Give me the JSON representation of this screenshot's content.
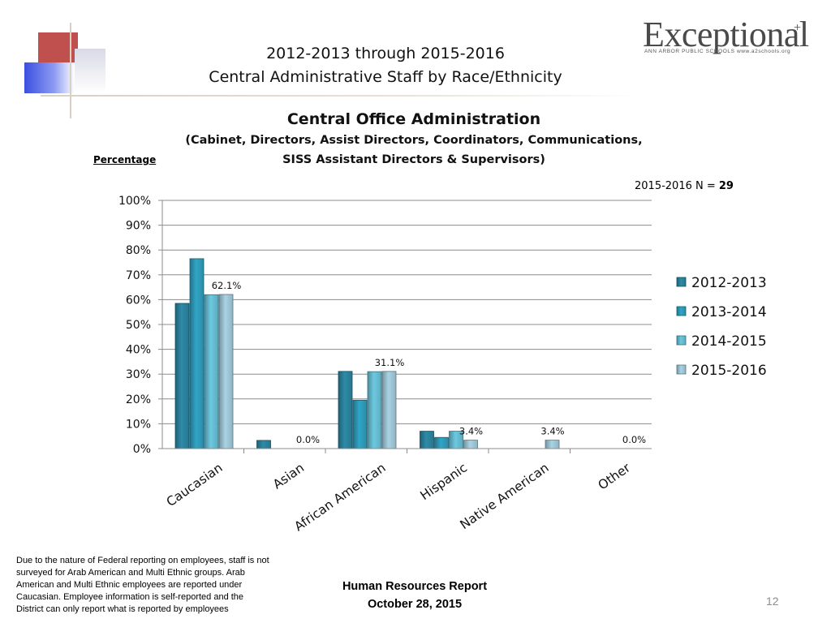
{
  "header": {
    "title_line1": "2012-2013 through 2015-2016",
    "title_line2": "Central Administrative Staff by Race/Ethnicity"
  },
  "logo": {
    "word": "Exceptional",
    "plus": "+",
    "subtitle": "ANN ARBOR PUBLIC SCHOOLS  www.a2schools.org"
  },
  "note": {
    "n_label": "2015-2016 N = ",
    "n_value": "29"
  },
  "chart_data": {
    "type": "bar",
    "title": "Central  Office Administration",
    "subtitle_line1": "(Cabinet, Directors, Assist Directors, Coordinators, Communications,",
    "subtitle_line2": "SISS Assistant Directors & Supervisors)",
    "ylabel": "Percentage",
    "xlabel": "",
    "ylim": [
      0,
      100
    ],
    "yticks": [
      "0%",
      "10%",
      "20%",
      "30%",
      "40%",
      "50%",
      "60%",
      "70%",
      "80%",
      "90%",
      "100%"
    ],
    "grid": true,
    "legend_position": "right",
    "categories": [
      "Caucasian",
      "Asian",
      "African American",
      "Hispanic",
      "Native American",
      "Other"
    ],
    "series": [
      {
        "name": "2012-2013",
        "color": "#2e8ba8",
        "values": [
          58.5,
          3.3,
          31.1,
          7.0,
          0.0,
          0.0
        ]
      },
      {
        "name": "2013-2014",
        "color": "#31a5c6",
        "values": [
          76.5,
          0.0,
          19.5,
          4.5,
          0.0,
          0.0
        ]
      },
      {
        "name": "2014-2015",
        "color": "#6cc9e0",
        "values": [
          62.0,
          0.0,
          31.0,
          7.0,
          0.0,
          0.0
        ]
      },
      {
        "name": "2015-2016",
        "color": "#a9d3e4",
        "values": [
          62.1,
          0.0,
          31.1,
          3.4,
          3.4,
          0.0
        ]
      }
    ],
    "data_labels": [
      {
        "category": "Caucasian",
        "series": "2015-2016",
        "text": "62.1%"
      },
      {
        "category": "Asian",
        "series": "2015-2016",
        "text": "0.0%"
      },
      {
        "category": "African American",
        "series": "2015-2016",
        "text": "31.1%"
      },
      {
        "category": "Hispanic",
        "series": "2015-2016",
        "text": "3.4%"
      },
      {
        "category": "Native American",
        "series": "2015-2016",
        "text": "3.4%"
      },
      {
        "category": "Other",
        "series": "2015-2016",
        "text": "0.0%"
      }
    ]
  },
  "footer": {
    "footnote": "Due to the nature of Federal reporting on employees, staff is not\nsurveyed for Arab American and Multi Ethnic groups.  Arab\nAmerican and Multi Ethnic employees are reported under\nCaucasian.  Employee information is self-reported and the\nDistrict can only report what is reported by employees",
    "report_line1": "Human Resources  Report",
    "report_line2": "October 28, 2015",
    "page_number": "12"
  }
}
